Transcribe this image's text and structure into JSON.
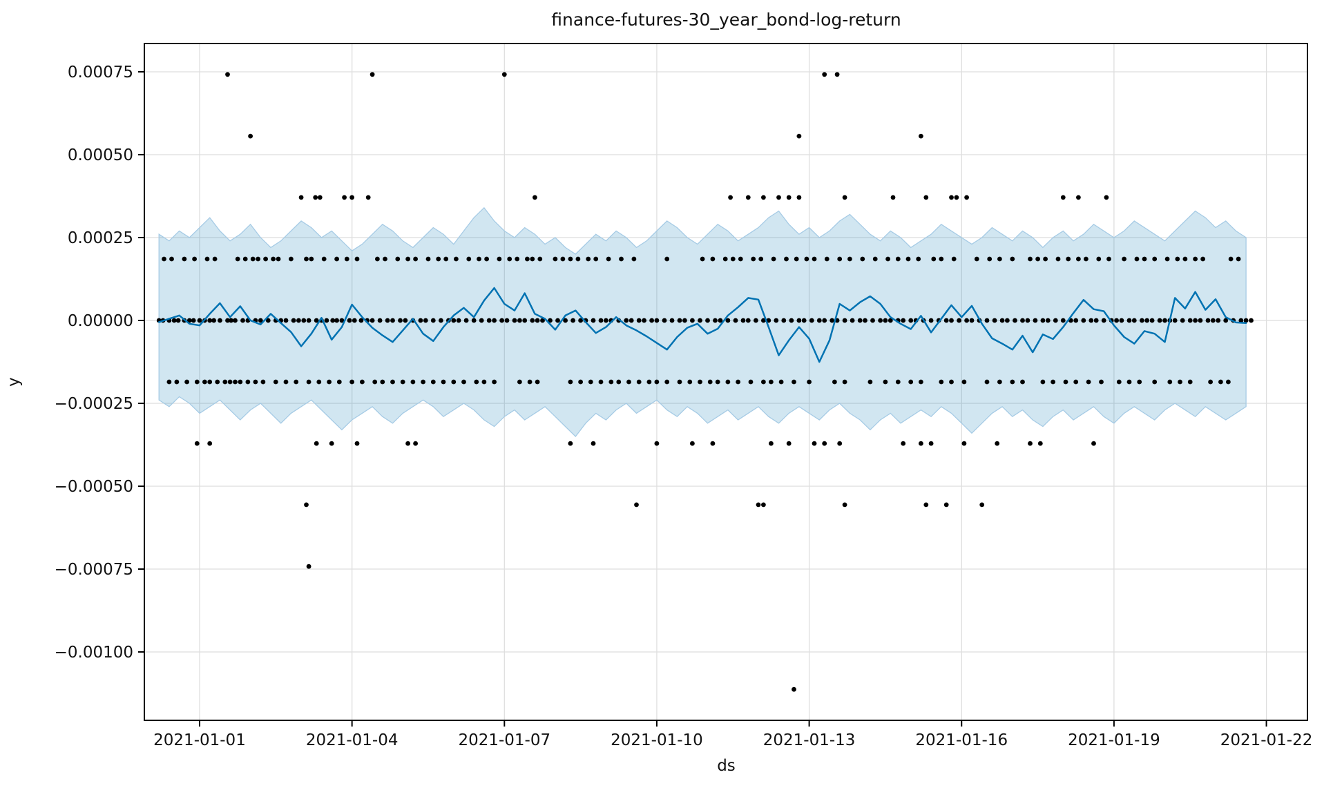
{
  "title": "finance-futures-30_year_bond-log-return",
  "axes": {
    "xlabel": "ds",
    "ylabel": "y"
  },
  "chart_data": {
    "type": "scatter",
    "title": "finance-futures-30_year_bond-log-return",
    "xlabel": "ds",
    "ylabel": "y",
    "grid": true,
    "legend": "none",
    "x_epoch": "2021-01-01",
    "x_tick_labels": [
      "2021-01-01",
      "2021-01-04",
      "2021-01-07",
      "2021-01-10",
      "2021-01-13",
      "2021-01-16",
      "2021-01-19",
      "2021-01-22"
    ],
    "x_tick_day_offsets": [
      0,
      3,
      6,
      9,
      12,
      15,
      18,
      21
    ],
    "y_tick_labels": [
      "0.00075",
      "0.00050",
      "0.00025",
      "0.00000",
      "−0.00025",
      "−0.00050",
      "−0.00075",
      "−0.00100"
    ],
    "y_tick_values_1e5": [
      75,
      50,
      25,
      0,
      -25,
      -50,
      -75,
      -100
    ],
    "y_unit": 1e-05,
    "data_start_day": -0.8,
    "data_end_day": 20.75,
    "colors": {
      "line": "#0072B2",
      "band_fill": "rgba(0,114,178,0.18)",
      "band_edge": "#a6cbe5",
      "marker": "#000000",
      "grid": "#dedede",
      "spine": "#000000",
      "text": "#111111"
    },
    "scatter_levels": [
      {
        "name": "level_+0.000742",
        "value_1e5": 74.2,
        "days": [
          0.55,
          3.4,
          6.0,
          12.3,
          12.55
        ]
      },
      {
        "name": "level_+0.000556",
        "value_1e5": 55.6,
        "days": [
          1.0,
          11.8,
          14.2
        ]
      },
      {
        "name": "level_+0.000371",
        "value_1e5": 37.1,
        "days": [
          2.0,
          2.28,
          2.37,
          2.85,
          3.0,
          3.32,
          6.6,
          10.45,
          10.8,
          11.1,
          11.4,
          11.6,
          11.8,
          12.7,
          13.65,
          14.3,
          14.8,
          14.9,
          15.1,
          17.0,
          17.3,
          17.85
        ]
      },
      {
        "name": "level_+0.000185",
        "value_1e5": 18.55,
        "days": [
          -0.7,
          -0.55,
          -0.3,
          -0.1,
          0.15,
          0.3,
          0.75,
          0.9,
          1.05,
          1.15,
          1.3,
          1.45,
          1.55,
          1.8,
          2.1,
          2.2,
          2.45,
          2.7,
          2.9,
          3.1,
          3.5,
          3.65,
          3.9,
          4.1,
          4.25,
          4.5,
          4.7,
          4.85,
          5.05,
          5.3,
          5.5,
          5.65,
          5.9,
          6.1,
          6.25,
          6.45,
          6.55,
          6.7,
          7.0,
          7.15,
          7.3,
          7.45,
          7.65,
          7.8,
          8.05,
          8.3,
          8.55,
          9.2,
          9.9,
          10.1,
          10.35,
          10.5,
          10.65,
          10.9,
          11.05,
          11.3,
          11.55,
          11.75,
          11.95,
          12.1,
          12.35,
          12.6,
          12.8,
          13.05,
          13.3,
          13.55,
          13.75,
          13.95,
          14.15,
          14.45,
          14.6,
          14.85,
          15.3,
          15.55,
          15.75,
          16.0,
          16.35,
          16.5,
          16.65,
          16.9,
          17.1,
          17.3,
          17.45,
          17.7,
          17.9,
          18.2,
          18.45,
          18.6,
          18.8,
          19.05,
          19.25,
          19.4,
          19.6,
          19.75,
          20.3,
          20.45
        ]
      },
      {
        "name": "level_0",
        "value_1e5": 0,
        "days": [
          -0.8,
          -0.72,
          -0.6,
          -0.5,
          -0.42,
          -0.3,
          -0.2,
          -0.12,
          0.0,
          0.1,
          0.2,
          0.28,
          0.4,
          0.55,
          0.62,
          0.7,
          0.85,
          0.95,
          1.1,
          1.2,
          1.35,
          1.5,
          1.6,
          1.7,
          1.85,
          1.95,
          2.05,
          2.15,
          2.3,
          2.4,
          2.5,
          2.62,
          2.7,
          2.8,
          2.95,
          3.05,
          3.18,
          3.3,
          3.4,
          3.55,
          3.7,
          3.8,
          3.95,
          4.05,
          4.2,
          4.35,
          4.45,
          4.6,
          4.75,
          4.9,
          5.0,
          5.1,
          5.25,
          5.4,
          5.55,
          5.7,
          5.8,
          5.95,
          6.05,
          6.2,
          6.3,
          6.4,
          6.55,
          6.65,
          6.75,
          6.9,
          7.05,
          7.2,
          7.35,
          7.5,
          7.6,
          7.75,
          7.9,
          8.0,
          8.1,
          8.25,
          8.4,
          8.5,
          8.65,
          8.75,
          8.9,
          9.0,
          9.15,
          9.3,
          9.45,
          9.55,
          9.7,
          9.85,
          10.0,
          10.15,
          10.25,
          10.4,
          10.55,
          10.7,
          10.8,
          10.95,
          11.1,
          11.2,
          11.35,
          11.5,
          11.65,
          11.8,
          11.9,
          12.05,
          12.2,
          12.3,
          12.45,
          12.55,
          12.7,
          12.85,
          13.0,
          13.1,
          13.25,
          13.4,
          13.5,
          13.6,
          13.75,
          13.85,
          14.0,
          14.1,
          14.25,
          14.4,
          14.55,
          14.7,
          14.8,
          14.95,
          15.1,
          15.2,
          15.35,
          15.5,
          15.65,
          15.8,
          15.9,
          16.05,
          16.2,
          16.3,
          16.45,
          16.6,
          16.7,
          16.85,
          17.0,
          17.15,
          17.25,
          17.4,
          17.55,
          17.65,
          17.8,
          17.95,
          18.05,
          18.15,
          18.3,
          18.4,
          18.55,
          18.65,
          18.75,
          18.9,
          19.0,
          19.1,
          19.2,
          19.35,
          19.5,
          19.6,
          19.7,
          19.85,
          19.95,
          20.05,
          20.2,
          20.35,
          20.5,
          20.6,
          20.7
        ]
      },
      {
        "name": "level_-0.000185",
        "value_1e5": -18.55,
        "days": [
          -0.6,
          -0.45,
          -0.25,
          -0.05,
          0.1,
          0.2,
          0.35,
          0.5,
          0.6,
          0.7,
          0.8,
          0.95,
          1.1,
          1.25,
          1.5,
          1.7,
          1.9,
          2.15,
          2.35,
          2.55,
          2.75,
          3.0,
          3.2,
          3.45,
          3.6,
          3.8,
          4.0,
          4.2,
          4.4,
          4.6,
          4.8,
          5.0,
          5.2,
          5.45,
          5.6,
          5.8,
          6.3,
          6.5,
          6.65,
          7.3,
          7.5,
          7.7,
          7.9,
          8.1,
          8.25,
          8.45,
          8.65,
          8.85,
          9.0,
          9.2,
          9.45,
          9.65,
          9.85,
          10.05,
          10.2,
          10.4,
          10.6,
          10.85,
          11.1,
          11.25,
          11.45,
          11.7,
          12.0,
          12.5,
          12.7,
          13.2,
          13.5,
          13.75,
          14.0,
          14.2,
          14.6,
          14.8,
          15.05,
          15.5,
          15.75,
          16.0,
          16.2,
          16.6,
          16.8,
          17.05,
          17.25,
          17.5,
          17.75,
          18.1,
          18.3,
          18.5,
          18.8,
          19.1,
          19.3,
          19.5,
          19.9,
          20.1,
          20.25
        ]
      },
      {
        "name": "level_-0.000371",
        "value_1e5": -37.1,
        "days": [
          -0.05,
          0.2,
          2.3,
          2.6,
          3.1,
          4.1,
          4.25,
          7.3,
          7.75,
          9.0,
          9.7,
          10.1,
          11.25,
          11.6,
          12.1,
          12.3,
          12.6,
          13.85,
          14.2,
          14.4,
          15.05,
          15.7,
          16.35,
          16.55,
          17.6
        ]
      },
      {
        "name": "level_-0.000556",
        "value_1e5": -55.6,
        "days": [
          2.1,
          8.6,
          11.0,
          11.1,
          12.7,
          14.3,
          14.7,
          15.4
        ]
      },
      {
        "name": "level_-0.000742",
        "value_1e5": -74.2,
        "days": [
          2.15
        ]
      },
      {
        "name": "level_-0.001113",
        "value_1e5": -111.3,
        "days": [
          11.7
        ]
      }
    ],
    "yhat": {
      "x_start_day": -0.8,
      "x_step_day": 0.2,
      "values_1e5": [
        -0.5,
        0.5,
        1.5,
        -1.0,
        -1.5,
        2.0,
        5.2,
        1.0,
        4.3,
        0.0,
        -1.2,
        2.0,
        -0.8,
        -3.5,
        -7.8,
        -4.0,
        0.8,
        -5.8,
        -2.0,
        4.8,
        1.0,
        -2.2,
        -4.5,
        -6.5,
        -3.0,
        0.5,
        -4.0,
        -6.2,
        -2.0,
        1.5,
        3.8,
        1.0,
        6.0,
        9.8,
        5.0,
        3.0,
        8.2,
        2.0,
        0.5,
        -2.8,
        1.5,
        3.0,
        -0.5,
        -3.8,
        -2.0,
        1.0,
        -1.5,
        -3.0,
        -4.8,
        -6.8,
        -8.8,
        -5.0,
        -2.2,
        -1.0,
        -4.0,
        -2.5,
        1.5,
        4.0,
        6.8,
        6.3,
        -2.0,
        -10.5,
        -6.0,
        -2.0,
        -5.5,
        -12.5,
        -6.0,
        5.0,
        3.0,
        5.5,
        7.3,
        5.0,
        1.0,
        -1.0,
        -2.6,
        1.4,
        -3.6,
        0.5,
        4.6,
        1.0,
        4.4,
        -1.0,
        -5.4,
        -7.0,
        -8.8,
        -4.6,
        -9.6,
        -4.2,
        -5.6,
        -2.0,
        2.2,
        6.2,
        3.4,
        2.8,
        -1.5,
        -5.0,
        -7.0,
        -3.2,
        -4.0,
        -6.5,
        6.8,
        3.6,
        8.6,
        3.2,
        6.4,
        1.0,
        -0.6,
        -0.8
      ]
    },
    "band": {
      "x_start_day": -0.8,
      "x_step_day": 0.2,
      "upper_1e5": [
        26,
        24,
        27,
        25,
        28,
        31,
        27,
        24,
        26,
        29,
        25,
        22,
        24,
        27,
        30,
        28,
        25,
        27,
        24,
        21,
        23,
        26,
        29,
        27,
        24,
        22,
        25,
        28,
        26,
        23,
        27,
        31,
        34,
        30,
        27,
        25,
        28,
        26,
        23,
        25,
        22,
        20,
        23,
        26,
        24,
        27,
        25,
        22,
        24,
        27,
        30,
        28,
        25,
        23,
        26,
        29,
        27,
        24,
        26,
        28,
        31,
        33,
        29,
        26,
        28,
        25,
        27,
        30,
        32,
        29,
        26,
        24,
        27,
        25,
        22,
        24,
        26,
        29,
        27,
        25,
        23,
        25,
        28,
        26,
        24,
        27,
        25,
        22,
        25,
        27,
        24,
        26,
        29,
        27,
        25,
        27,
        30,
        28,
        26,
        24,
        27,
        30,
        33,
        31,
        28,
        30,
        27,
        25
      ],
      "lower_1e5": [
        -24,
        -26,
        -23,
        -25,
        -28,
        -26,
        -24,
        -27,
        -30,
        -27,
        -25,
        -28,
        -31,
        -28,
        -26,
        -24,
        -27,
        -30,
        -33,
        -30,
        -28,
        -26,
        -29,
        -31,
        -28,
        -26,
        -24,
        -26,
        -29,
        -27,
        -25,
        -27,
        -30,
        -32,
        -29,
        -27,
        -30,
        -28,
        -26,
        -29,
        -32,
        -35,
        -31,
        -28,
        -30,
        -27,
        -25,
        -28,
        -26,
        -24,
        -27,
        -29,
        -26,
        -28,
        -31,
        -29,
        -27,
        -30,
        -28,
        -26,
        -29,
        -31,
        -28,
        -26,
        -28,
        -30,
        -27,
        -25,
        -28,
        -30,
        -33,
        -30,
        -28,
        -31,
        -29,
        -27,
        -29,
        -26,
        -28,
        -31,
        -34,
        -31,
        -28,
        -26,
        -29,
        -27,
        -30,
        -32,
        -29,
        -27,
        -30,
        -28,
        -26,
        -29,
        -31,
        -28,
        -26,
        -28,
        -30,
        -27,
        -25,
        -27,
        -29,
        -26,
        -28,
        -30,
        -28,
        -26
      ]
    }
  }
}
